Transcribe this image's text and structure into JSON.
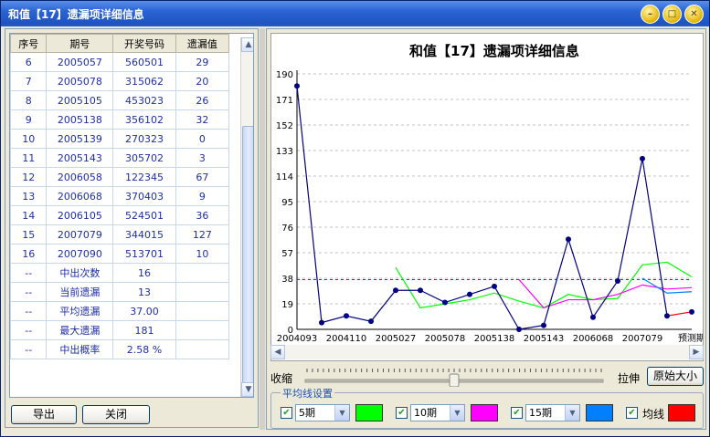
{
  "window": {
    "title": "和值【17】遗漏项详细信息"
  },
  "table": {
    "headers": [
      "序号",
      "期号",
      "开奖号码",
      "遗漏值"
    ],
    "rows": [
      [
        "6",
        "2005057",
        "560501",
        "29"
      ],
      [
        "7",
        "2005078",
        "315062",
        "20"
      ],
      [
        "8",
        "2005105",
        "453023",
        "26"
      ],
      [
        "9",
        "2005138",
        "356102",
        "32"
      ],
      [
        "10",
        "2005139",
        "270323",
        "0"
      ],
      [
        "11",
        "2005143",
        "305702",
        "3"
      ],
      [
        "12",
        "2006058",
        "122345",
        "67"
      ],
      [
        "13",
        "2006068",
        "370403",
        "9"
      ],
      [
        "14",
        "2006105",
        "524501",
        "36"
      ],
      [
        "15",
        "2007079",
        "344015",
        "127"
      ],
      [
        "16",
        "2007090",
        "513701",
        "10"
      ]
    ],
    "stats": [
      [
        "--",
        "中出次数",
        "16",
        ""
      ],
      [
        "--",
        "当前遗漏",
        "13",
        ""
      ],
      [
        "--",
        "平均遗漏",
        "37.00",
        ""
      ],
      [
        "--",
        "最大遗漏",
        "181",
        ""
      ],
      [
        "--",
        "中出概率",
        "2.58 %",
        ""
      ]
    ]
  },
  "buttons": {
    "export": "导出",
    "close": "关闭",
    "original_size": "原始大小"
  },
  "slider": {
    "left_label": "收缩",
    "right_label": "拉伸",
    "position": 0.5
  },
  "avg_settings": {
    "title": "平均线设置",
    "items": [
      {
        "period": "5期",
        "color": "#00ff00",
        "checked": true
      },
      {
        "period": "10期",
        "color": "#ff00ff",
        "checked": true
      },
      {
        "period": "15期",
        "color": "#0080ff",
        "checked": true
      }
    ],
    "mean_label": "均线",
    "mean_color": "#ff0000",
    "mean_checked": true
  },
  "chart_data": {
    "type": "line",
    "title": "和值【17】遗漏项详细信息",
    "yticks": [
      0,
      19,
      38,
      57,
      76,
      95,
      114,
      133,
      152,
      171,
      190
    ],
    "ylim": [
      0,
      190
    ],
    "xlabels": [
      "2004093",
      "2004110",
      "2005027",
      "2005078",
      "2005138",
      "2005143",
      "2006068",
      "2007079",
      "预测期"
    ],
    "series": [
      {
        "name": "遗漏值",
        "color": "#000080",
        "values": [
          181,
          5,
          10,
          6,
          29,
          29,
          20,
          26,
          32,
          0,
          3,
          67,
          9,
          36,
          127,
          10,
          13
        ]
      },
      {
        "name": "5期",
        "color": "#00ff00",
        "values": [
          null,
          null,
          null,
          null,
          46,
          16,
          19,
          22,
          27,
          21,
          16,
          26,
          22,
          23,
          48,
          50,
          39
        ]
      },
      {
        "name": "10期",
        "color": "#ff00ff",
        "values": [
          null,
          null,
          null,
          null,
          null,
          null,
          null,
          null,
          null,
          37,
          16,
          22,
          22,
          26,
          33,
          30,
          31
        ]
      },
      {
        "name": "15期",
        "color": "#0080ff",
        "values": [
          null,
          null,
          null,
          null,
          null,
          null,
          null,
          null,
          null,
          null,
          null,
          null,
          null,
          null,
          38,
          27,
          28
        ]
      }
    ],
    "mean": 37,
    "grid": true
  }
}
